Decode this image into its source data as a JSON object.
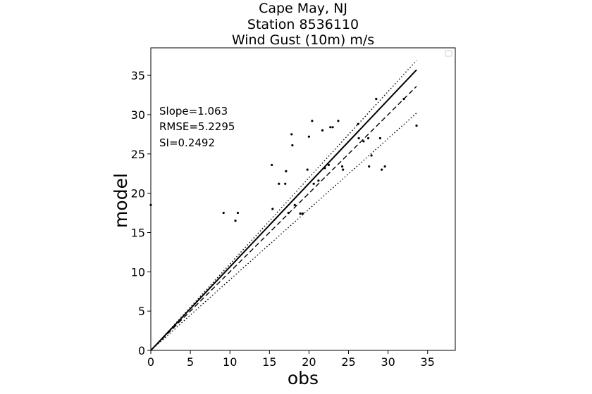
{
  "chart_data": {
    "type": "scatter",
    "title_lines": [
      "Cape May, NJ",
      "Station 8536110",
      "Wind Gust (10m) m/s"
    ],
    "xlabel": "obs",
    "ylabel": "model",
    "xlim": [
      0,
      38.5
    ],
    "ylim": [
      0,
      38.5
    ],
    "xticks": [
      0,
      5,
      10,
      15,
      20,
      25,
      30,
      35
    ],
    "yticks": [
      0,
      5,
      10,
      15,
      20,
      25,
      30,
      35
    ],
    "grid": false,
    "legend": "top-right (empty)",
    "stats": [
      "Slope=1.063",
      "RMSE=5.2295",
      "SI=0.2492"
    ],
    "lines": [
      {
        "style": "solid",
        "x": [
          0,
          33.6
        ],
        "y": [
          0,
          35.7
        ]
      },
      {
        "style": "dashed",
        "x": [
          0,
          33.6
        ],
        "y": [
          0,
          33.6
        ]
      },
      {
        "style": "dotted",
        "x": [
          0,
          33.6
        ],
        "y": [
          0,
          36.9
        ]
      },
      {
        "style": "dotted",
        "x": [
          0,
          33.6
        ],
        "y": [
          0,
          30.2
        ]
      }
    ],
    "points": [
      [
        0.0,
        18.5
      ],
      [
        9.2,
        17.5
      ],
      [
        10.7,
        16.5
      ],
      [
        11.0,
        17.5
      ],
      [
        15.3,
        23.6
      ],
      [
        15.4,
        18.0
      ],
      [
        16.2,
        21.2
      ],
      [
        17.0,
        21.2
      ],
      [
        17.1,
        22.8
      ],
      [
        17.4,
        17.5
      ],
      [
        17.8,
        27.5
      ],
      [
        17.9,
        26.1
      ],
      [
        18.2,
        18.5
      ],
      [
        18.9,
        17.4
      ],
      [
        19.2,
        17.4
      ],
      [
        19.8,
        23.0
      ],
      [
        20.0,
        27.2
      ],
      [
        20.4,
        29.2
      ],
      [
        20.6,
        21.2
      ],
      [
        21.2,
        21.6
      ],
      [
        21.7,
        28.0
      ],
      [
        22.0,
        23.2
      ],
      [
        22.5,
        23.6
      ],
      [
        22.7,
        28.4
      ],
      [
        23.0,
        28.4
      ],
      [
        23.7,
        29.2
      ],
      [
        24.2,
        23.4
      ],
      [
        24.3,
        23.0
      ],
      [
        26.2,
        28.8
      ],
      [
        26.3,
        27.0
      ],
      [
        26.9,
        26.6
      ],
      [
        27.5,
        27.0
      ],
      [
        27.6,
        23.4
      ],
      [
        27.9,
        24.8
      ],
      [
        28.5,
        32.0
      ],
      [
        29.0,
        27.0
      ],
      [
        29.2,
        23.0
      ],
      [
        29.6,
        23.4
      ],
      [
        32.0,
        32.0
      ],
      [
        33.6,
        28.6
      ]
    ]
  }
}
